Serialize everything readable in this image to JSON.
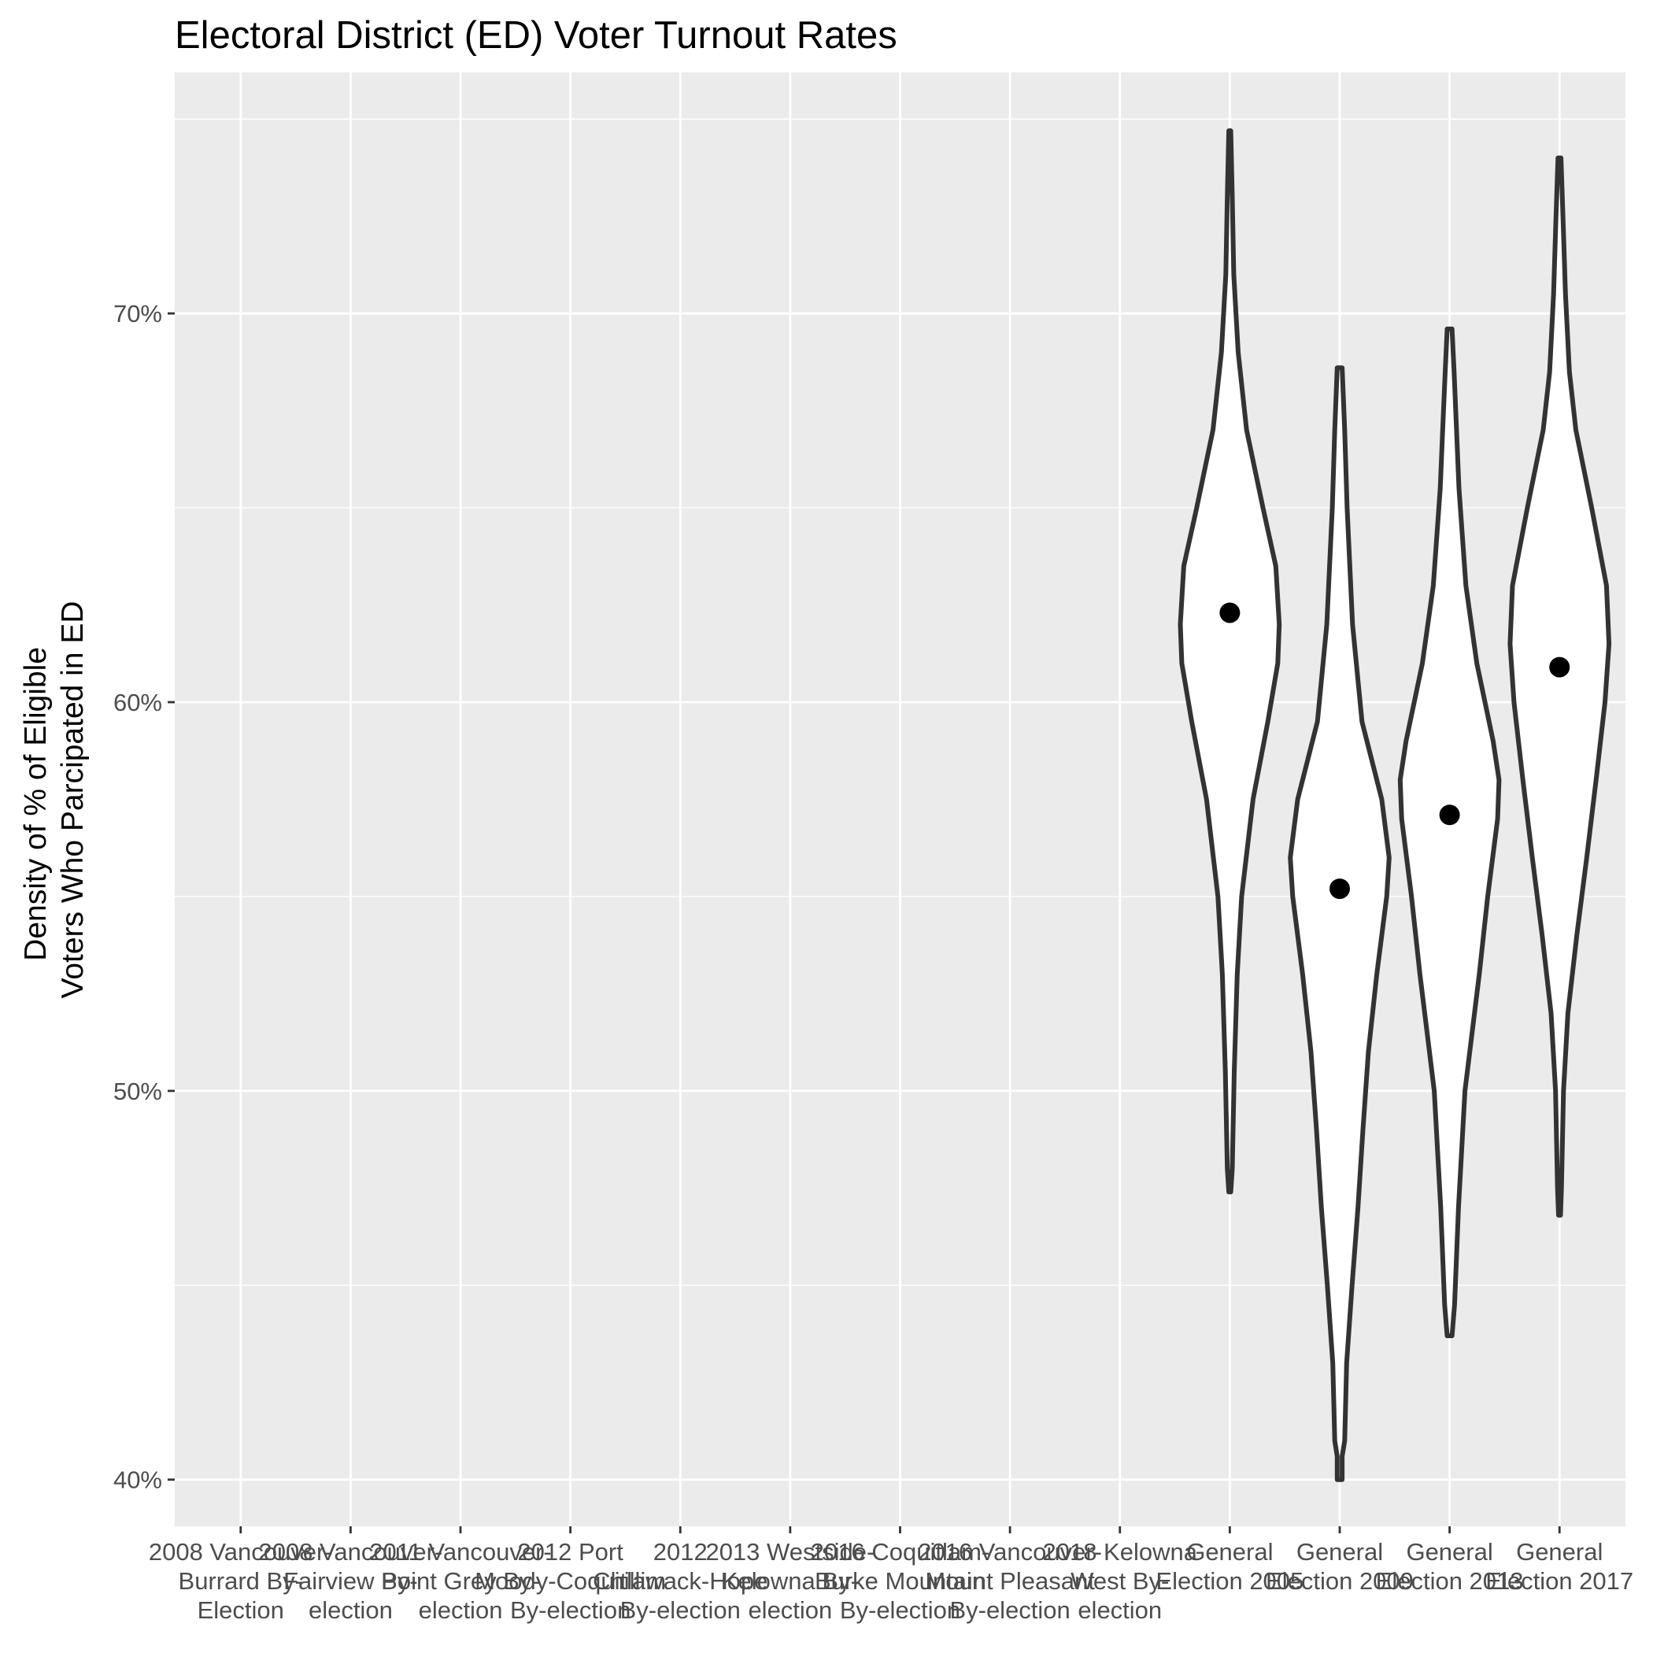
{
  "chart_data": {
    "type": "violin",
    "title": "Electoral District (ED) Voter Turnout Rates",
    "ylabel": "Density of % of Eligible Voters Who Parcipated in ED",
    "ylabel_lines": [
      "Density of % of Eligible",
      "Voters Who Parcipated in ED"
    ],
    "xlabel": "",
    "ylim": [
      38.8,
      76.2
    ],
    "y_ticks": [
      40,
      50,
      60,
      70
    ],
    "y_tick_labels": [
      "40%",
      "50%",
      "60%",
      "70%"
    ],
    "y_minor_ticks": [
      45,
      55,
      65,
      75
    ],
    "grid": true,
    "categories": [
      {
        "lines": [
          "2008 Vancouver-",
          "Burrard By-",
          "Election"
        ]
      },
      {
        "lines": [
          "2008 Vancouver-",
          "Fairview By-",
          "election"
        ]
      },
      {
        "lines": [
          "2011 Vancouver-",
          "Point Grey By-",
          "election"
        ]
      },
      {
        "lines": [
          "2012 Port",
          "Moody-Coquitlam",
          "By-election"
        ]
      },
      {
        "lines": [
          "2012",
          "Chilliwack-Hope",
          "By-election"
        ]
      },
      {
        "lines": [
          "2013 Westside-",
          "Kelowna By-",
          "election"
        ]
      },
      {
        "lines": [
          "2016 Coquitlam-",
          "Burke Mountain",
          "By-election"
        ]
      },
      {
        "lines": [
          "2016 Vancouver-",
          "Mount Pleasant",
          "By-election"
        ]
      },
      {
        "lines": [
          "2018 Kelowna",
          "West By-",
          "election"
        ]
      },
      {
        "lines": [
          "General",
          "Election 2005"
        ]
      },
      {
        "lines": [
          "General",
          "Election 2009"
        ]
      },
      {
        "lines": [
          "General",
          "Election 2013"
        ]
      },
      {
        "lines": [
          "General",
          "Election 2017"
        ]
      }
    ],
    "series": [
      {
        "category_index": 9,
        "mean": 62.3,
        "density": [
          [
            47.4,
            0.02
          ],
          [
            48.0,
            0.05
          ],
          [
            50.5,
            0.09
          ],
          [
            53.0,
            0.15
          ],
          [
            55.0,
            0.24
          ],
          [
            57.5,
            0.47
          ],
          [
            59.5,
            0.77
          ],
          [
            61.0,
            0.97
          ],
          [
            62.0,
            1.0
          ],
          [
            63.5,
            0.93
          ],
          [
            65.0,
            0.67
          ],
          [
            67.0,
            0.34
          ],
          [
            69.0,
            0.17
          ],
          [
            71.0,
            0.08
          ],
          [
            73.0,
            0.05
          ],
          [
            74.7,
            0.02
          ]
        ]
      },
      {
        "category_index": 10,
        "mean": 55.2,
        "density": [
          [
            40.0,
            0.05
          ],
          [
            40.6,
            0.05
          ],
          [
            41.0,
            0.1
          ],
          [
            43.0,
            0.14
          ],
          [
            45.0,
            0.25
          ],
          [
            47.0,
            0.37
          ],
          [
            49.0,
            0.47
          ],
          [
            51.0,
            0.58
          ],
          [
            53.0,
            0.75
          ],
          [
            55.0,
            0.95
          ],
          [
            56.0,
            1.0
          ],
          [
            57.5,
            0.85
          ],
          [
            59.5,
            0.45
          ],
          [
            62.0,
            0.26
          ],
          [
            65.0,
            0.15
          ],
          [
            67.0,
            0.1
          ],
          [
            68.6,
            0.05
          ]
        ]
      },
      {
        "category_index": 11,
        "mean": 57.1,
        "density": [
          [
            43.7,
            0.05
          ],
          [
            44.5,
            0.1
          ],
          [
            47.0,
            0.18
          ],
          [
            50.0,
            0.31
          ],
          [
            53.0,
            0.6
          ],
          [
            55.0,
            0.77
          ],
          [
            57.0,
            0.97
          ],
          [
            58.0,
            1.0
          ],
          [
            59.0,
            0.88
          ],
          [
            61.0,
            0.55
          ],
          [
            63.0,
            0.33
          ],
          [
            65.5,
            0.19
          ],
          [
            67.0,
            0.14
          ],
          [
            68.5,
            0.09
          ],
          [
            69.6,
            0.05
          ]
        ]
      },
      {
        "category_index": 12,
        "mean": 60.9,
        "density": [
          [
            46.8,
            0.02
          ],
          [
            47.5,
            0.04
          ],
          [
            50.0,
            0.08
          ],
          [
            52.0,
            0.17
          ],
          [
            54.0,
            0.35
          ],
          [
            56.0,
            0.55
          ],
          [
            58.0,
            0.74
          ],
          [
            60.0,
            0.92
          ],
          [
            61.5,
            1.0
          ],
          [
            63.0,
            0.95
          ],
          [
            65.0,
            0.65
          ],
          [
            67.0,
            0.33
          ],
          [
            68.5,
            0.2
          ],
          [
            70.5,
            0.12
          ],
          [
            72.5,
            0.07
          ],
          [
            74.0,
            0.03
          ]
        ]
      }
    ]
  }
}
